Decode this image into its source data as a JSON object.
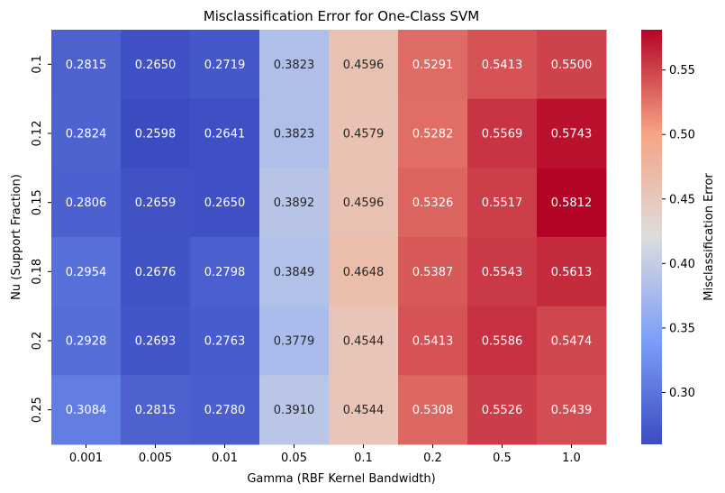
{
  "chart_data": {
    "type": "heatmap",
    "title": "Misclassification Error for One-Class SVM",
    "xlabel": "Gamma (RBF Kernel Bandwidth)",
    "ylabel": "Nu (Support Fraction)",
    "x_categories": [
      "0.001",
      "0.005",
      "0.01",
      "0.05",
      "0.1",
      "0.2",
      "0.5",
      "1.0"
    ],
    "y_categories": [
      "0.1",
      "0.12",
      "0.15",
      "0.18",
      "0.2",
      "0.25"
    ],
    "values": [
      [
        0.2815,
        0.265,
        0.2719,
        0.3823,
        0.4596,
        0.5291,
        0.5413,
        0.55
      ],
      [
        0.2824,
        0.2598,
        0.2641,
        0.3823,
        0.4579,
        0.5282,
        0.5569,
        0.5743
      ],
      [
        0.2806,
        0.2659,
        0.265,
        0.3892,
        0.4596,
        0.5326,
        0.5517,
        0.5812
      ],
      [
        0.2954,
        0.2676,
        0.2798,
        0.3849,
        0.4648,
        0.5387,
        0.5543,
        0.5613
      ],
      [
        0.2928,
        0.2693,
        0.2763,
        0.3779,
        0.4544,
        0.5413,
        0.5586,
        0.5474
      ],
      [
        0.3084,
        0.2815,
        0.278,
        0.391,
        0.4544,
        0.5308,
        0.5526,
        0.5439
      ]
    ],
    "colorbar": {
      "label": "Misclassification Error",
      "ticks": [
        "0.30",
        "0.35",
        "0.40",
        "0.45",
        "0.50",
        "0.55"
      ],
      "range": [
        0.2598,
        0.5812
      ],
      "colormap": "coolwarm"
    },
    "legend": "colorbar-right"
  }
}
